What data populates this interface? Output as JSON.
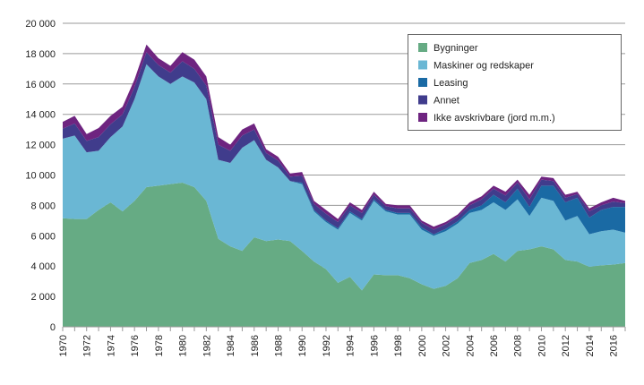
{
  "chart_data": {
    "type": "area",
    "stacked": true,
    "title": "",
    "xlabel": "",
    "ylabel": "",
    "ylim": [
      0,
      20000
    ],
    "yticks": [
      0,
      2000,
      4000,
      6000,
      8000,
      10000,
      12000,
      14000,
      16000,
      18000,
      20000
    ],
    "ytick_labels": [
      "0",
      "2 000",
      "4 000",
      "6 000",
      "8 000",
      "10 000",
      "12 000",
      "14 000",
      "16 000",
      "18 000",
      "20 000"
    ],
    "xtick_labels": [
      "1970",
      "1972",
      "1974",
      "1976",
      "1978",
      "1980",
      "1982",
      "1984",
      "1986",
      "1988",
      "1990",
      "1992",
      "1994",
      "1996",
      "1998",
      "2000",
      "2002",
      "2004",
      "2006",
      "2008",
      "2010",
      "2012",
      "2014",
      "2016"
    ],
    "grid": "horizontal",
    "legend_position": "top-right",
    "x": [
      1970,
      1971,
      1972,
      1973,
      1974,
      1975,
      1976,
      1977,
      1978,
      1979,
      1980,
      1981,
      1982,
      1983,
      1984,
      1985,
      1986,
      1987,
      1988,
      1989,
      1990,
      1991,
      1992,
      1993,
      1994,
      1995,
      1996,
      1997,
      1998,
      1999,
      2000,
      2001,
      2002,
      2003,
      2004,
      2005,
      2006,
      2007,
      2008,
      2009,
      2010,
      2011,
      2012,
      2013,
      2014,
      2015,
      2016,
      2017
    ],
    "series": [
      {
        "name": "Bygninger",
        "color": "#66ab84",
        "values": [
          7150,
          7100,
          7100,
          7700,
          8200,
          7600,
          8300,
          9200,
          9300,
          9400,
          9500,
          9200,
          8300,
          5800,
          5300,
          5000,
          5900,
          5650,
          5750,
          5650,
          5000,
          4300,
          3800,
          2900,
          3300,
          2400,
          3450,
          3400,
          3400,
          3200,
          2800,
          2500,
          2700,
          3200,
          4200,
          4400,
          4800,
          4300,
          5000,
          5100,
          5300,
          5100,
          4400,
          4300,
          3950,
          4050,
          4100,
          4200
        ]
      },
      {
        "name": "Maskiner og redskaper",
        "color": "#6ab7d4",
        "values": [
          5250,
          5500,
          4400,
          3900,
          4300,
          5600,
          6700,
          8100,
          7200,
          6600,
          7000,
          6900,
          6700,
          5200,
          5500,
          6800,
          6400,
          5350,
          4750,
          3950,
          4400,
          3300,
          3100,
          3500,
          4200,
          4600,
          4850,
          4200,
          4000,
          4200,
          3600,
          3500,
          3600,
          3600,
          3300,
          3300,
          3400,
          3400,
          3400,
          2200,
          3200,
          3200,
          2600,
          3000,
          2150,
          2250,
          2300,
          2000
        ]
      },
      {
        "name": "Leasing",
        "color": "#1a6aa4",
        "values": [
          0,
          0,
          0,
          0,
          0,
          0,
          0,
          0,
          0,
          0,
          0,
          0,
          0,
          0,
          0,
          0,
          0,
          0,
          0,
          0,
          100,
          100,
          100,
          100,
          100,
          100,
          100,
          100,
          100,
          100,
          150,
          100,
          150,
          150,
          200,
          300,
          500,
          500,
          700,
          600,
          800,
          1000,
          1200,
          1200,
          1100,
          1400,
          1500,
          1700
        ]
      },
      {
        "name": "Annet",
        "color": "#403c8c",
        "values": [
          650,
          800,
          750,
          900,
          850,
          800,
          800,
          800,
          750,
          750,
          1000,
          900,
          900,
          1000,
          800,
          800,
          700,
          450,
          450,
          300,
          450,
          400,
          450,
          400,
          400,
          400,
          300,
          250,
          300,
          300,
          300,
          300,
          300,
          300,
          300,
          400,
          400,
          450,
          400,
          500,
          400,
          300,
          300,
          250,
          400,
          300,
          350,
          250
        ]
      },
      {
        "name": "Ikke avskrivbare (jord m.m.)",
        "color": "#6e2480",
        "values": [
          450,
          500,
          450,
          600,
          550,
          500,
          500,
          500,
          450,
          450,
          600,
          600,
          600,
          500,
          400,
          400,
          400,
          250,
          250,
          200,
          250,
          200,
          250,
          200,
          200,
          200,
          200,
          150,
          200,
          200,
          150,
          200,
          150,
          150,
          200,
          200,
          200,
          250,
          200,
          300,
          200,
          200,
          200,
          150,
          200,
          200,
          250,
          150
        ]
      }
    ]
  }
}
